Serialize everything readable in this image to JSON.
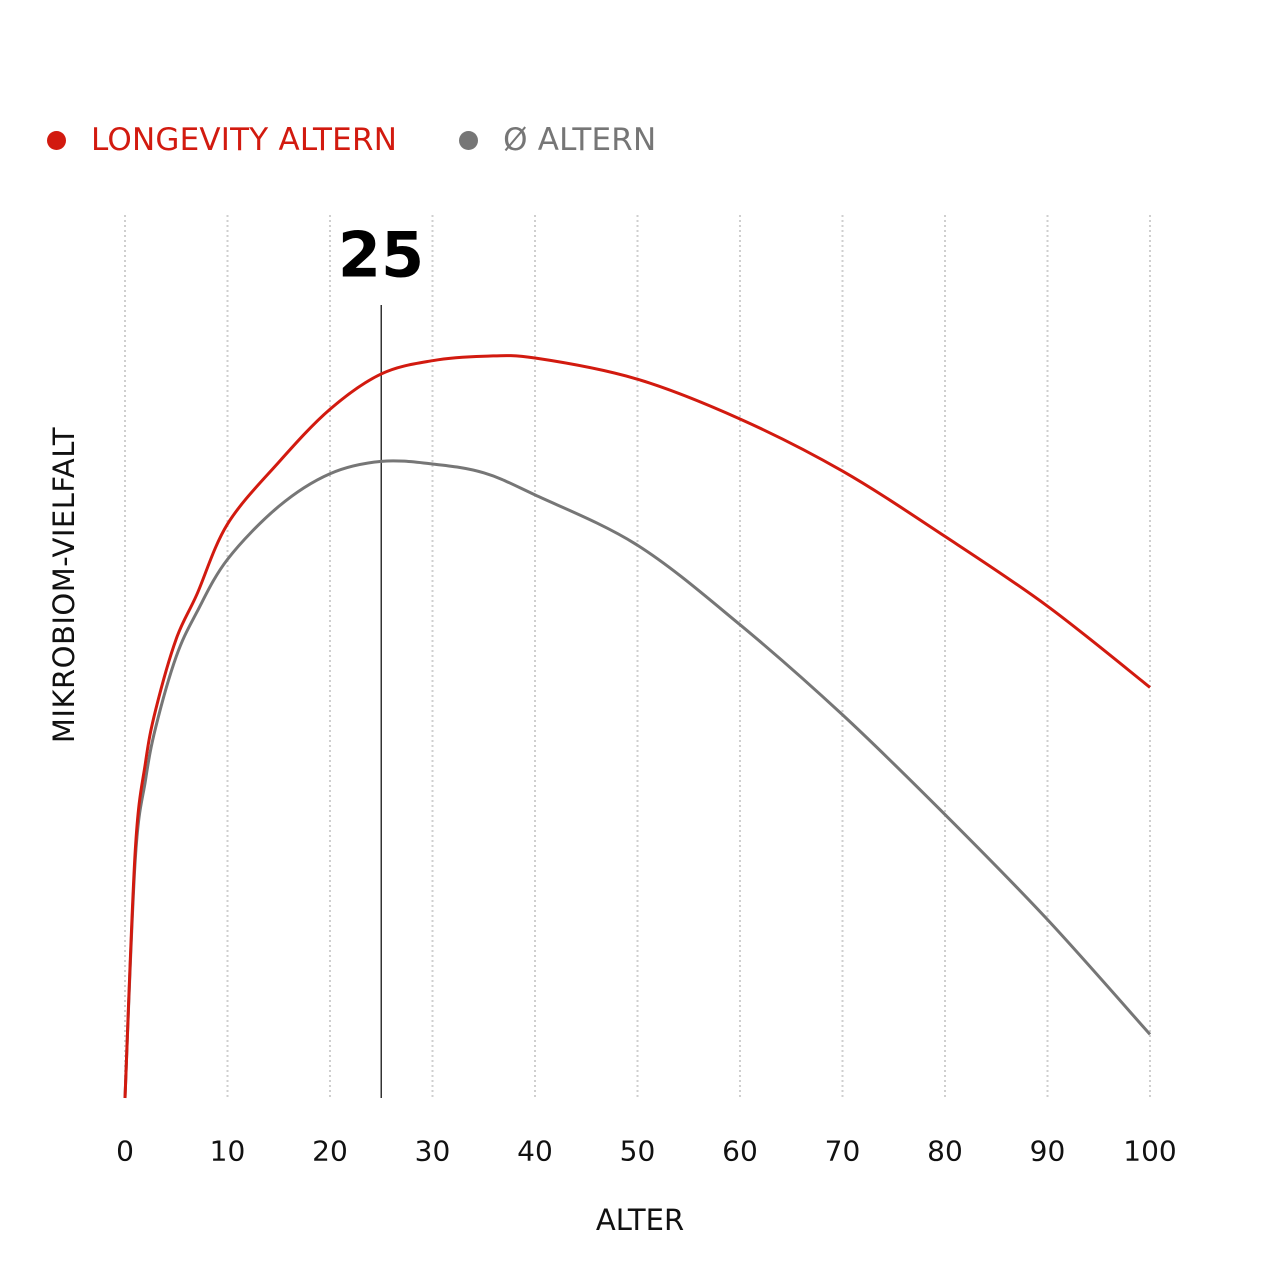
{
  "legend": {
    "items": [
      {
        "label": "LONGEVITY ALTERN",
        "color": "#d21a0f"
      },
      {
        "label": "Ø ALTERN",
        "color": "#767676"
      }
    ]
  },
  "marker": {
    "label": "25",
    "x": 25
  },
  "axes": {
    "x_title": "ALTER",
    "y_title": "MIKROBIOM-VIELFALT",
    "x_ticks": [
      "0",
      "10",
      "20",
      "30",
      "40",
      "50",
      "60",
      "70",
      "80",
      "90",
      "100"
    ]
  },
  "chart_data": {
    "type": "line",
    "title": "",
    "xlabel": "ALTER",
    "ylabel": "MIKROBIOM-VIELFALT",
    "xlim": [
      0,
      100
    ],
    "ylim": [
      0,
      100
    ],
    "grid": {
      "vertical": true,
      "horizontal": false,
      "style": "dotted"
    },
    "legend_position": "top-left",
    "x_ticks": [
      0,
      10,
      20,
      30,
      40,
      50,
      60,
      70,
      80,
      90,
      100
    ],
    "y_ticks": [],
    "annotations": [
      {
        "type": "vline",
        "x": 25,
        "label": "25"
      }
    ],
    "x": [
      0,
      1,
      2,
      3,
      5,
      7,
      10,
      15,
      20,
      25,
      30,
      35,
      40,
      50,
      60,
      70,
      80,
      90,
      100
    ],
    "series": [
      {
        "name": "LONGEVITY ALTERN",
        "color": "#d21a0f",
        "values": [
          0,
          28,
          38,
          44,
          52,
          57,
          65,
          72,
          78,
          82,
          83.5,
          84,
          83.8,
          81.4,
          76.9,
          71,
          63.6,
          55.7,
          46.5
        ]
      },
      {
        "name": "Ø ALTERN",
        "color": "#767676",
        "values": [
          0,
          27,
          36,
          42,
          50,
          55,
          61,
          67,
          70.7,
          72.1,
          71.8,
          70.8,
          68.3,
          62.6,
          53.6,
          43.4,
          32.1,
          20.2,
          7.2
        ]
      }
    ]
  }
}
